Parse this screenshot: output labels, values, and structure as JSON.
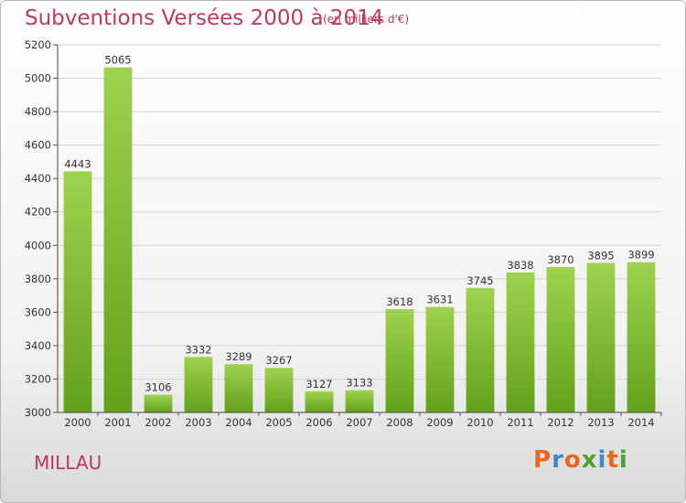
{
  "title": "Subventions Versées 2000 à 2014",
  "subtitle": "(en milliers d'€)",
  "city": "MILLAU",
  "logo": "Proxiti",
  "colors": {
    "title": "#c0395a",
    "bar_top": "#9fd24e",
    "bar_bottom": "#63a11b",
    "logo_letters": [
      "#e8681d",
      "#3b8ad0",
      "#e8681d",
      "#4ca12f",
      "#3b8ad0",
      "#e8681d",
      "#4ca12f"
    ]
  },
  "chart_data": {
    "type": "bar",
    "categories": [
      "2000",
      "2001",
      "2002",
      "2003",
      "2004",
      "2005",
      "2006",
      "2007",
      "2008",
      "2009",
      "2010",
      "2011",
      "2012",
      "2013",
      "2014"
    ],
    "values": [
      4443,
      5065,
      3106,
      3332,
      3289,
      3267,
      3127,
      3133,
      3618,
      3631,
      3745,
      3838,
      3870,
      3895,
      3899
    ],
    "ylim": [
      3000,
      5200
    ],
    "yticks": [
      3000,
      3200,
      3400,
      3600,
      3800,
      4000,
      4200,
      4400,
      4600,
      4800,
      5000,
      5200
    ],
    "grid": true,
    "data_labels": true
  }
}
